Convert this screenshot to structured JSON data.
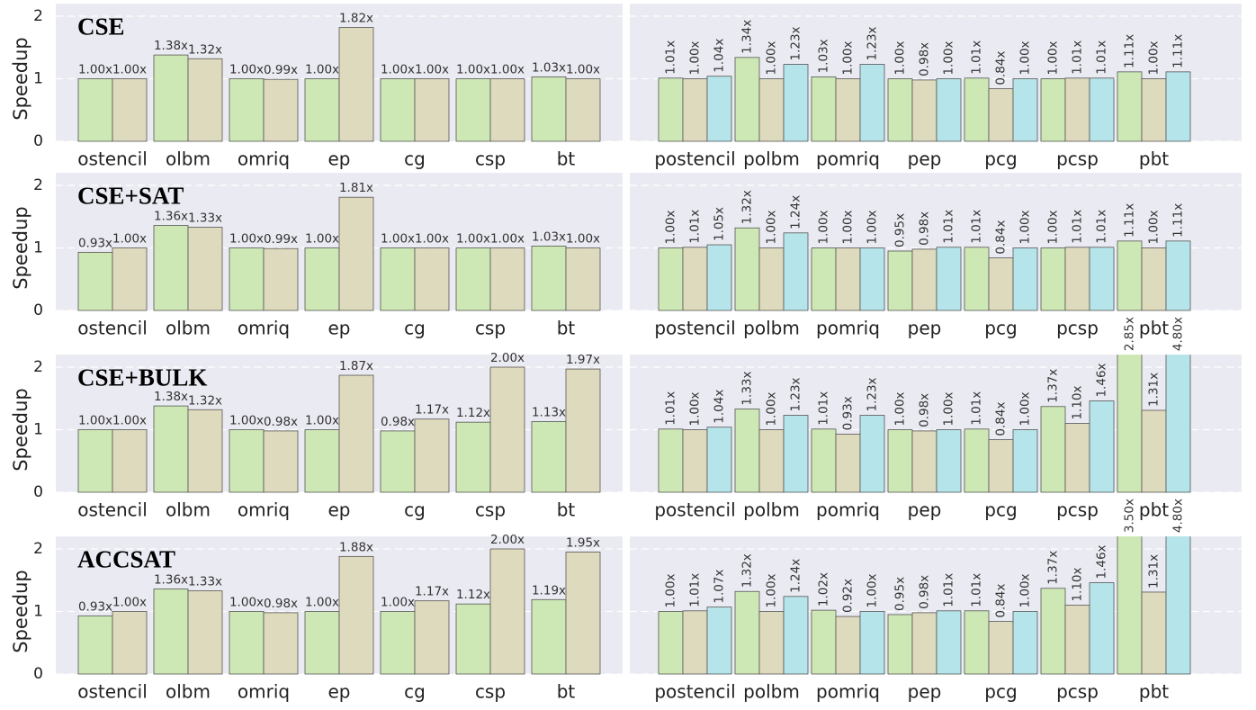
{
  "chart_data": [
    {
      "type": "bar",
      "title": "CSE",
      "ylabel": "Speedup",
      "ylim": [
        0,
        2.2
      ],
      "yticks": [
        0,
        1,
        2
      ],
      "grid": true,
      "categories": [
        "ostencil",
        "olbm",
        "omriq",
        "ep",
        "cg",
        "csp",
        "bt"
      ],
      "series": [
        {
          "color": "#cde8b5",
          "values": [
            1.0,
            1.38,
            1.0,
            1.0,
            1.0,
            1.0,
            1.03
          ],
          "value_labels": [
            "1.00x",
            "1.38x",
            "1.00x",
            "1.00x",
            "1.00x",
            "1.00x",
            "1.03x"
          ]
        },
        {
          "color": "#dedabd",
          "values": [
            1.0,
            1.32,
            0.99,
            1.82,
            1.0,
            1.0,
            1.0
          ],
          "value_labels": [
            "1.00x",
            "1.32x",
            "0.99x",
            "1.82x",
            "1.00x",
            "1.00x",
            "1.00x"
          ]
        }
      ]
    },
    {
      "type": "bar",
      "ylim": [
        0,
        2.2
      ],
      "yticks": [
        0,
        1,
        2
      ],
      "grid": true,
      "categories": [
        "postencil",
        "polbm",
        "pomriq",
        "pep",
        "pcg",
        "pcsp",
        "pbt"
      ],
      "series": [
        {
          "color": "#cde8b5",
          "values": [
            1.01,
            1.34,
            1.03,
            1.0,
            1.01,
            1.0,
            1.11
          ],
          "value_labels": [
            "1.01x",
            "1.34x",
            "1.03x",
            "1.00x",
            "1.01x",
            "1.00x",
            "1.11x"
          ]
        },
        {
          "color": "#dedabd",
          "values": [
            1.0,
            1.0,
            1.0,
            0.98,
            0.84,
            1.01,
            1.0
          ],
          "value_labels": [
            "1.00x",
            "1.00x",
            "1.00x",
            "0.98x",
            "0.84x",
            "1.01x",
            "1.00x"
          ]
        },
        {
          "color": "#b5e5ea",
          "values": [
            1.04,
            1.23,
            1.23,
            1.0,
            1.0,
            1.01,
            1.11
          ],
          "value_labels": [
            "1.04x",
            "1.23x",
            "1.23x",
            "1.00x",
            "1.00x",
            "1.01x",
            "1.11x"
          ]
        }
      ]
    },
    {
      "type": "bar",
      "title": "CSE+SAT",
      "ylabel": "Speedup",
      "ylim": [
        0,
        2.2
      ],
      "yticks": [
        0,
        1,
        2
      ],
      "grid": true,
      "categories": [
        "ostencil",
        "olbm",
        "omriq",
        "ep",
        "cg",
        "csp",
        "bt"
      ],
      "series": [
        {
          "color": "#cde8b5",
          "values": [
            0.93,
            1.36,
            1.0,
            1.0,
            1.0,
            1.0,
            1.03
          ],
          "value_labels": [
            "0.93x",
            "1.36x",
            "1.00x",
            "1.00x",
            "1.00x",
            "1.00x",
            "1.03x"
          ]
        },
        {
          "color": "#dedabd",
          "values": [
            1.0,
            1.33,
            0.99,
            1.81,
            1.0,
            1.0,
            1.0
          ],
          "value_labels": [
            "1.00x",
            "1.33x",
            "0.99x",
            "1.81x",
            "1.00x",
            "1.00x",
            "1.00x"
          ]
        }
      ]
    },
    {
      "type": "bar",
      "ylim": [
        0,
        2.2
      ],
      "yticks": [
        0,
        1,
        2
      ],
      "grid": true,
      "categories": [
        "postencil",
        "polbm",
        "pomriq",
        "pep",
        "pcg",
        "pcsp",
        "pbt"
      ],
      "series": [
        {
          "color": "#cde8b5",
          "values": [
            1.0,
            1.32,
            1.0,
            0.95,
            1.01,
            1.0,
            1.11
          ],
          "value_labels": [
            "1.00x",
            "1.32x",
            "1.00x",
            "0.95x",
            "1.01x",
            "1.00x",
            "1.11x"
          ]
        },
        {
          "color": "#dedabd",
          "values": [
            1.01,
            1.0,
            1.0,
            0.98,
            0.84,
            1.01,
            1.0
          ],
          "value_labels": [
            "1.01x",
            "1.00x",
            "1.00x",
            "0.98x",
            "0.84x",
            "1.01x",
            "1.00x"
          ]
        },
        {
          "color": "#b5e5ea",
          "values": [
            1.05,
            1.24,
            1.0,
            1.01,
            1.0,
            1.01,
            1.11
          ],
          "value_labels": [
            "1.05x",
            "1.24x",
            "1.00x",
            "1.01x",
            "1.00x",
            "1.01x",
            "1.11x"
          ]
        }
      ]
    },
    {
      "type": "bar",
      "title": "CSE+BULK",
      "ylabel": "Speedup",
      "ylim": [
        0,
        2.2
      ],
      "yticks": [
        0,
        1,
        2
      ],
      "grid": true,
      "categories": [
        "ostencil",
        "olbm",
        "omriq",
        "ep",
        "cg",
        "csp",
        "bt"
      ],
      "series": [
        {
          "color": "#cde8b5",
          "values": [
            1.0,
            1.38,
            1.0,
            1.0,
            0.98,
            1.12,
            1.13
          ],
          "value_labels": [
            "1.00x",
            "1.38x",
            "1.00x",
            "1.00x",
            "0.98x",
            "1.12x",
            "1.13x"
          ]
        },
        {
          "color": "#dedabd",
          "values": [
            1.0,
            1.32,
            0.98,
            1.87,
            1.17,
            2.0,
            1.97
          ],
          "value_labels": [
            "1.00x",
            "1.32x",
            "0.98x",
            "1.87x",
            "1.17x",
            "2.00x",
            "1.97x"
          ]
        }
      ]
    },
    {
      "type": "bar",
      "ylim": [
        0,
        2.2
      ],
      "yticks": [
        0,
        1,
        2
      ],
      "grid": true,
      "categories": [
        "postencil",
        "polbm",
        "pomriq",
        "pep",
        "pcg",
        "pcsp",
        "pbt"
      ],
      "series": [
        {
          "color": "#cde8b5",
          "values": [
            1.01,
            1.33,
            1.01,
            1.0,
            1.01,
            1.37,
            2.85
          ],
          "value_labels": [
            "1.01x",
            "1.33x",
            "1.01x",
            "1.00x",
            "1.01x",
            "1.37x",
            "2.85x"
          ]
        },
        {
          "color": "#dedabd",
          "values": [
            1.0,
            1.0,
            0.93,
            0.98,
            0.84,
            1.1,
            1.31
          ],
          "value_labels": [
            "1.00x",
            "1.00x",
            "0.93x",
            "0.98x",
            "0.84x",
            "1.10x",
            "1.31x"
          ]
        },
        {
          "color": "#b5e5ea",
          "values": [
            1.04,
            1.23,
            1.23,
            1.0,
            1.0,
            1.46,
            4.8
          ],
          "value_labels": [
            "1.04x",
            "1.23x",
            "1.23x",
            "1.00x",
            "1.00x",
            "1.46x",
            "4.80x"
          ]
        }
      ]
    },
    {
      "type": "bar",
      "title": "ACCSAT",
      "ylabel": "Speedup",
      "ylim": [
        0,
        2.2
      ],
      "yticks": [
        0,
        1,
        2
      ],
      "grid": true,
      "categories": [
        "ostencil",
        "olbm",
        "omriq",
        "ep",
        "cg",
        "csp",
        "bt"
      ],
      "series": [
        {
          "color": "#cde8b5",
          "values": [
            0.93,
            1.36,
            1.0,
            1.0,
            1.0,
            1.12,
            1.19
          ],
          "value_labels": [
            "0.93x",
            "1.36x",
            "1.00x",
            "1.00x",
            "1.00x",
            "1.12x",
            "1.19x"
          ]
        },
        {
          "color": "#dedabd",
          "values": [
            1.0,
            1.33,
            0.98,
            1.88,
            1.17,
            2.0,
            1.95
          ],
          "value_labels": [
            "1.00x",
            "1.33x",
            "0.98x",
            "1.88x",
            "1.17x",
            "2.00x",
            "1.95x"
          ]
        }
      ]
    },
    {
      "type": "bar",
      "ylim": [
        0,
        2.2
      ],
      "yticks": [
        0,
        1,
        2
      ],
      "grid": true,
      "categories": [
        "postencil",
        "polbm",
        "pomriq",
        "pep",
        "pcg",
        "pcsp",
        "pbt"
      ],
      "series": [
        {
          "color": "#cde8b5",
          "values": [
            1.0,
            1.32,
            1.02,
            0.95,
            1.01,
            1.37,
            3.5
          ],
          "value_labels": [
            "1.00x",
            "1.32x",
            "1.02x",
            "0.95x",
            "1.01x",
            "1.37x",
            "3.50x"
          ]
        },
        {
          "color": "#dedabd",
          "values": [
            1.01,
            1.0,
            0.92,
            0.98,
            0.84,
            1.1,
            1.31
          ],
          "value_labels": [
            "1.01x",
            "1.00x",
            "0.92x",
            "0.98x",
            "0.84x",
            "1.10x",
            "1.31x"
          ]
        },
        {
          "color": "#b5e5ea",
          "values": [
            1.07,
            1.24,
            1.0,
            1.01,
            1.0,
            1.46,
            4.8
          ],
          "value_labels": [
            "1.07x",
            "1.24x",
            "1.00x",
            "1.01x",
            "1.00x",
            "1.46x",
            "4.80x"
          ]
        }
      ]
    }
  ]
}
